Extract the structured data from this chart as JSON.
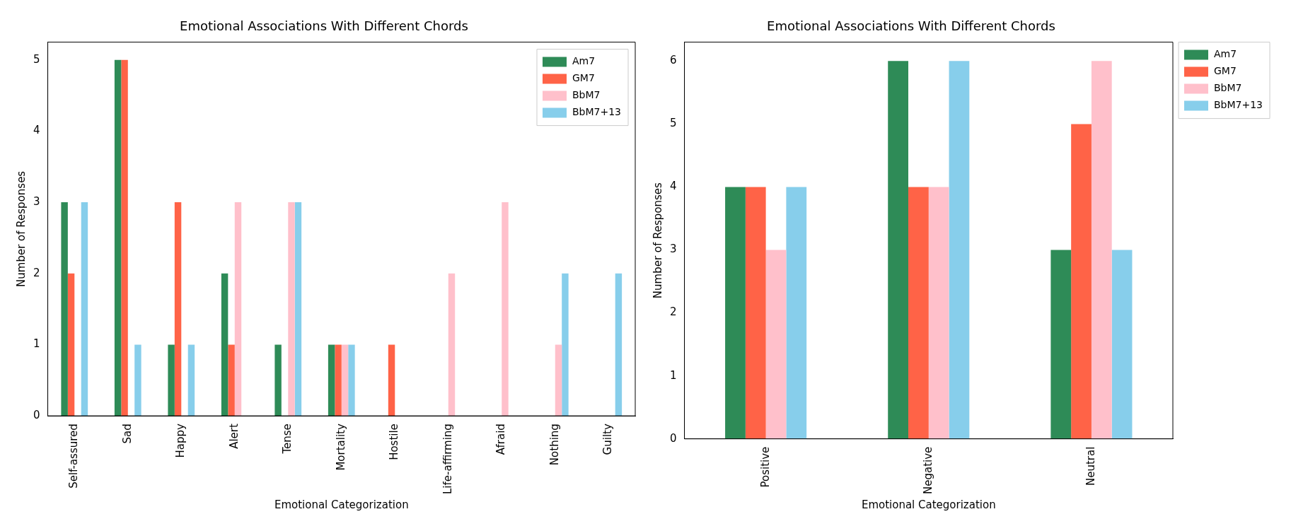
{
  "chart_data": [
    {
      "type": "bar",
      "title": "Emotional Associations With Different Chords",
      "xlabel": "Emotional Categorization",
      "ylabel": "Number of Responses",
      "categories": [
        "Self-assured",
        "Sad",
        "Happy",
        "Alert",
        "Tense",
        "Mortality",
        "Hostile",
        "Life-affirming",
        "Afraid",
        "Nothing",
        "Guilty"
      ],
      "series": [
        {
          "name": "Am7",
          "color": "#2e8b57",
          "values": [
            3,
            5,
            1,
            2,
            1,
            1,
            0,
            0,
            0,
            0,
            0
          ]
        },
        {
          "name": "GM7",
          "color": "#ff6347",
          "values": [
            2,
            5,
            3,
            1,
            0,
            1,
            1,
            0,
            0,
            0,
            0
          ]
        },
        {
          "name": "BbM7",
          "color": "#ffc0cb",
          "values": [
            0,
            0,
            0,
            3,
            3,
            1,
            0,
            2,
            3,
            1,
            0
          ]
        },
        {
          "name": "BbM7+13",
          "color": "#87ceeb",
          "values": [
            3,
            1,
            1,
            0,
            3,
            1,
            0,
            0,
            0,
            2,
            2
          ]
        }
      ],
      "ylim": [
        0,
        5.25
      ],
      "yticks": [
        0,
        1,
        2,
        3,
        4,
        5
      ],
      "legend": "top right"
    },
    {
      "type": "bar",
      "title": "Emotional Associations With Different Chords",
      "xlabel": "Emotional Categorization",
      "ylabel": "Number of Responses",
      "categories": [
        "Positive",
        "Negative",
        "Neutral"
      ],
      "series": [
        {
          "name": "Am7",
          "color": "#2e8b57",
          "values": [
            4,
            6,
            3
          ]
        },
        {
          "name": "GM7",
          "color": "#ff6347",
          "values": [
            4,
            4,
            5
          ]
        },
        {
          "name": "BbM7",
          "color": "#ffc0cb",
          "values": [
            3,
            4,
            6
          ]
        },
        {
          "name": "BbM7+13",
          "color": "#87ceeb",
          "values": [
            4,
            6,
            3
          ]
        }
      ],
      "ylim": [
        0,
        6.3
      ],
      "yticks": [
        0,
        1,
        2,
        3,
        4,
        5,
        6
      ],
      "legend": "right"
    }
  ]
}
